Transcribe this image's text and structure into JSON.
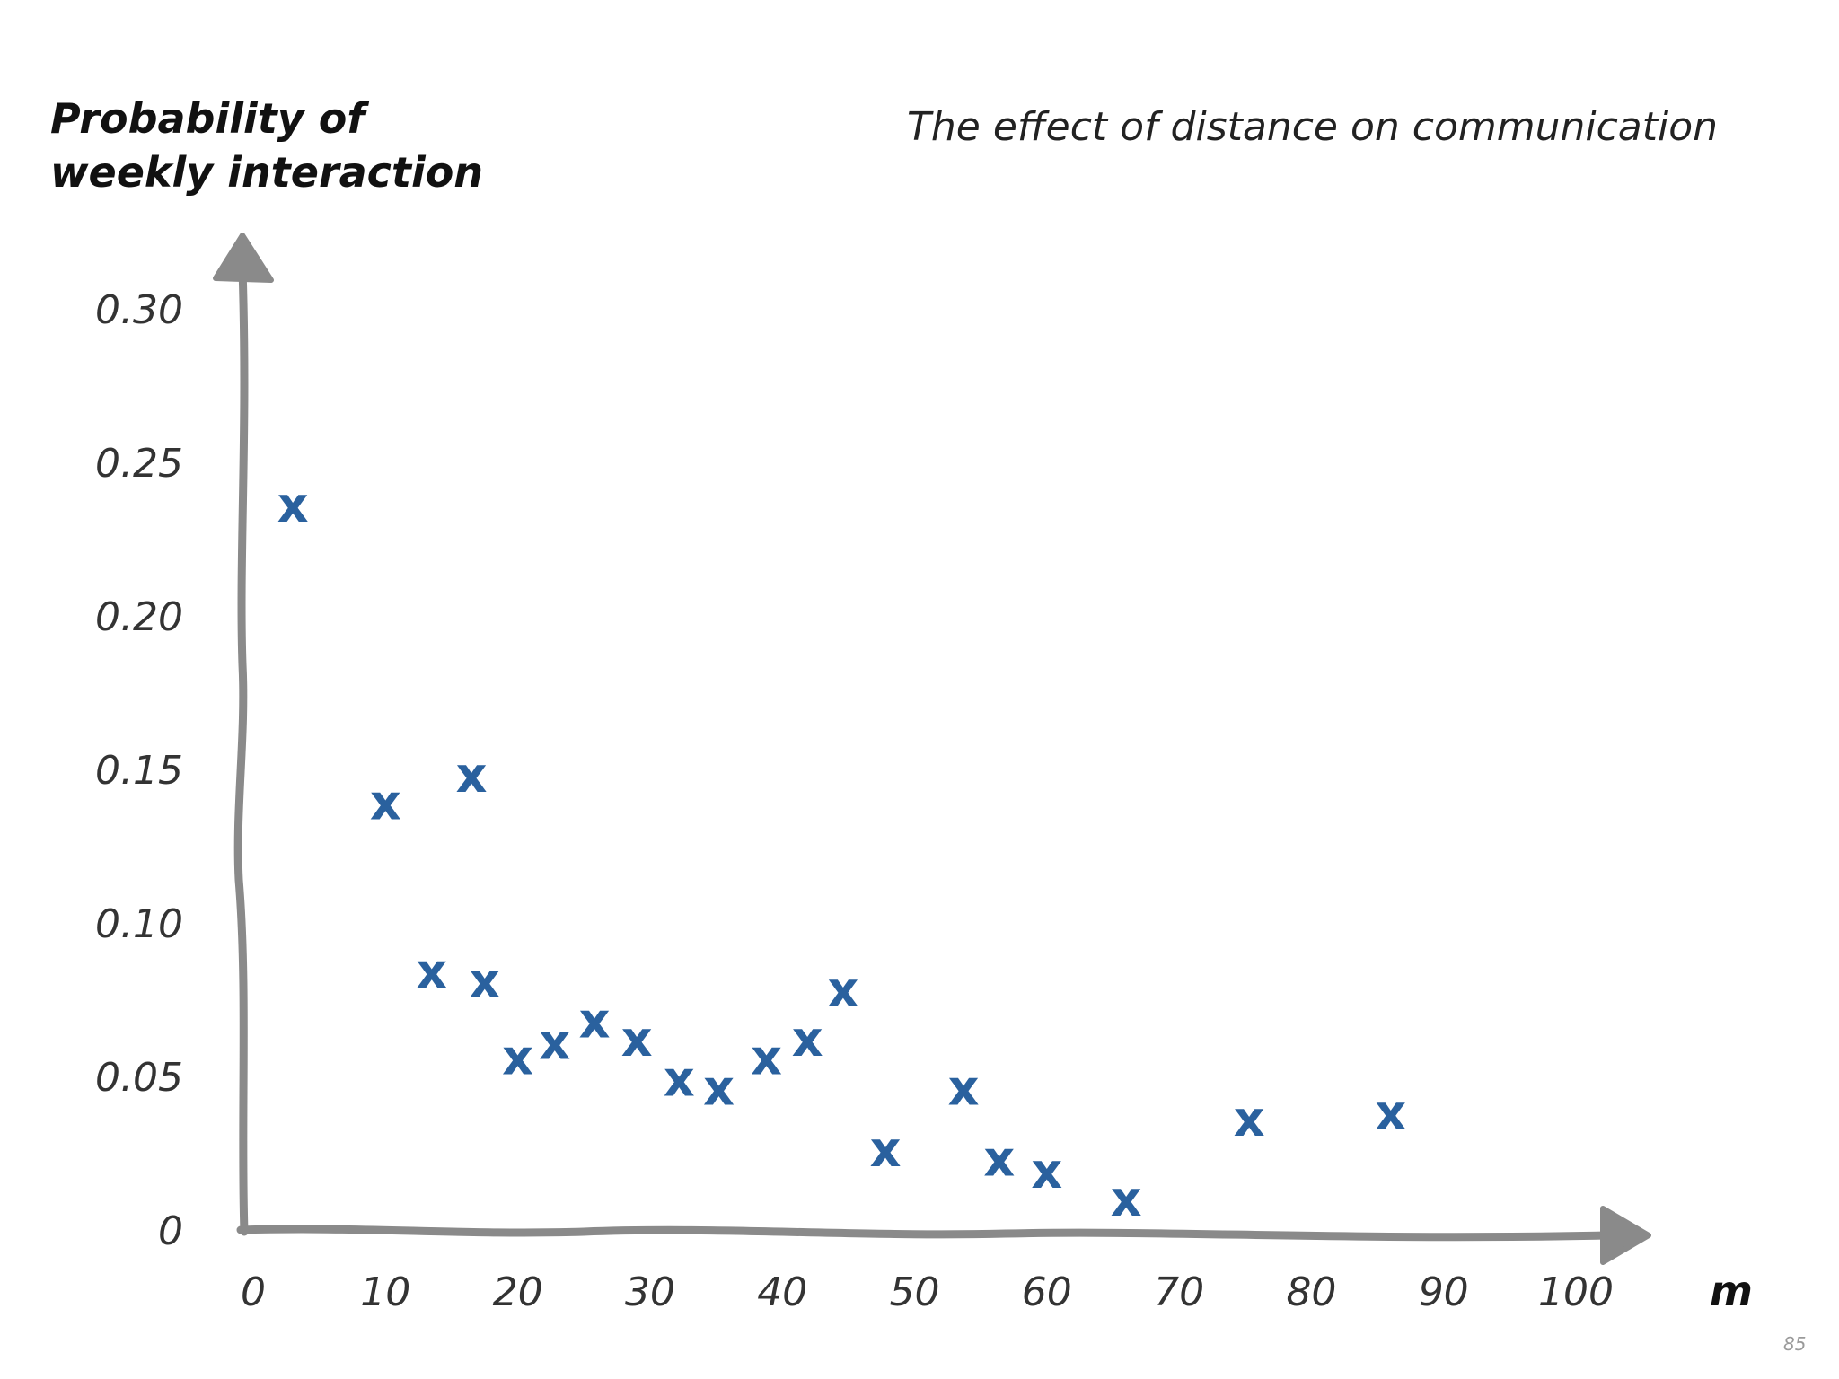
{
  "chart_data": {
    "type": "scatter",
    "title": "The effect of distance on communication",
    "ylabel_lines": [
      "Probability of",
      "weekly interaction"
    ],
    "xlabel": "m",
    "xlim": [
      0,
      100
    ],
    "ylim": [
      0,
      0.3
    ],
    "x_ticks": [
      "0",
      "10",
      "20",
      "30",
      "40",
      "50",
      "60",
      "70",
      "80",
      "90",
      "100"
    ],
    "y_ticks": [
      "0",
      "0.05",
      "0.10",
      "0.15",
      "0.20",
      "0.25",
      "0.30"
    ],
    "marker": "x",
    "marker_color": "#2a619e",
    "axis_color": "#8a8a8a",
    "grid": false,
    "points": [
      {
        "x": 3,
        "y": 0.236
      },
      {
        "x": 10,
        "y": 0.139
      },
      {
        "x": 13.5,
        "y": 0.084
      },
      {
        "x": 16.5,
        "y": 0.148
      },
      {
        "x": 17.5,
        "y": 0.081
      },
      {
        "x": 20,
        "y": 0.056
      },
      {
        "x": 22.8,
        "y": 0.061
      },
      {
        "x": 25.8,
        "y": 0.068
      },
      {
        "x": 29,
        "y": 0.062
      },
      {
        "x": 32.2,
        "y": 0.049
      },
      {
        "x": 35.2,
        "y": 0.046
      },
      {
        "x": 38.8,
        "y": 0.056
      },
      {
        "x": 41.9,
        "y": 0.062
      },
      {
        "x": 44.6,
        "y": 0.078
      },
      {
        "x": 47.8,
        "y": 0.026
      },
      {
        "x": 53.7,
        "y": 0.046
      },
      {
        "x": 56.4,
        "y": 0.023
      },
      {
        "x": 60,
        "y": 0.019
      },
      {
        "x": 66,
        "y": 0.01
      },
      {
        "x": 75.3,
        "y": 0.036
      },
      {
        "x": 86,
        "y": 0.038
      }
    ]
  },
  "page_number": "85"
}
